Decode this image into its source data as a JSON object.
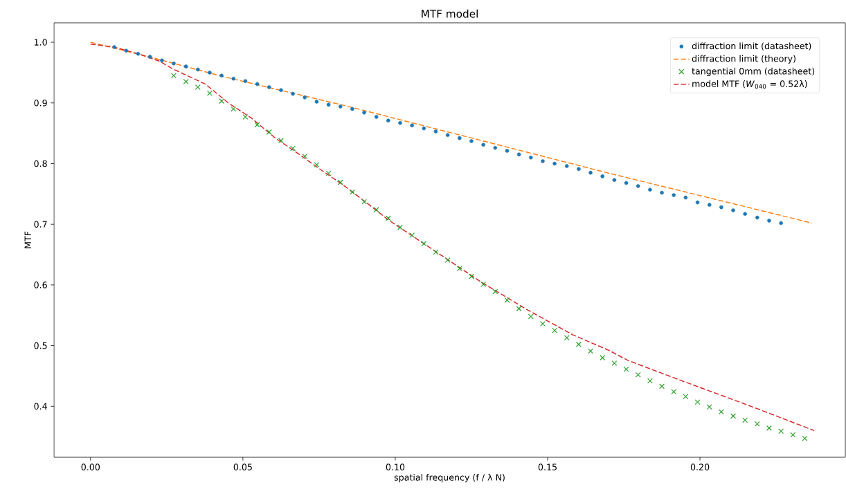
{
  "chart_data": {
    "type": "line",
    "title": "MTF model",
    "xlabel": "spatial frequency (f / λ N)",
    "ylabel": "MTF",
    "xlim": [
      -0.012,
      0.2477
    ],
    "ylim": [
      0.316,
      1.032
    ],
    "xticks": [
      {
        "value": 0,
        "label": "0.00"
      },
      {
        "value": 0.05,
        "label": "0.05"
      },
      {
        "value": 0.1,
        "label": "0.10"
      },
      {
        "value": 0.15,
        "label": "0.15"
      },
      {
        "value": 0.2,
        "label": "0.20"
      }
    ],
    "yticks": [
      {
        "value": 0.4,
        "label": "0.4"
      },
      {
        "value": 0.5,
        "label": "0.5"
      },
      {
        "value": 0.6,
        "label": "0.6"
      },
      {
        "value": 0.7,
        "label": "0.7"
      },
      {
        "value": 0.8,
        "label": "0.8"
      },
      {
        "value": 0.9,
        "label": "0.9"
      },
      {
        "value": 1.0,
        "label": "1.0"
      }
    ],
    "legend": "top right",
    "series": [
      {
        "name": "diffraction limit (datasheet)",
        "type": "scatter",
        "marker": "circle",
        "color": "#1f77b4",
        "x": [
          0.0078,
          0.0117,
          0.0156,
          0.0195,
          0.0234,
          0.0273,
          0.0313,
          0.0352,
          0.0391,
          0.043,
          0.0469,
          0.0508,
          0.0547,
          0.0586,
          0.0625,
          0.0664,
          0.0703,
          0.0742,
          0.0781,
          0.082,
          0.0859,
          0.0898,
          0.0938,
          0.0977,
          0.1016,
          0.1055,
          0.1094,
          0.1133,
          0.1172,
          0.1211,
          0.125,
          0.1289,
          0.1328,
          0.1367,
          0.1406,
          0.1445,
          0.1484,
          0.1523,
          0.1563,
          0.1602,
          0.1641,
          0.168,
          0.1719,
          0.1758,
          0.1797,
          0.1836,
          0.1875,
          0.1914,
          0.1953,
          0.1992,
          0.2031,
          0.207,
          0.2109,
          0.2148,
          0.2188,
          0.2227,
          0.2266
        ],
        "values": [
          0.992,
          0.986,
          0.981,
          0.976,
          0.97,
          0.965,
          0.96,
          0.955,
          0.95,
          0.945,
          0.94,
          0.936,
          0.931,
          0.926,
          0.921,
          0.915,
          0.909,
          0.902,
          0.897,
          0.894,
          0.89,
          0.884,
          0.877,
          0.871,
          0.867,
          0.863,
          0.858,
          0.853,
          0.847,
          0.842,
          0.837,
          0.831,
          0.826,
          0.821,
          0.815,
          0.81,
          0.804,
          0.8,
          0.796,
          0.791,
          0.785,
          0.779,
          0.773,
          0.768,
          0.763,
          0.757,
          0.752,
          0.748,
          0.744,
          0.736,
          0.732,
          0.728,
          0.723,
          0.717,
          0.711,
          0.706,
          0.702
        ]
      },
      {
        "name": "diffraction limit (theory)",
        "line_style": "dashed",
        "color": "#ff7f0e",
        "x": [
          0,
          0.02,
          0.043,
          0.0839,
          0.1252,
          0.1702,
          0.2035,
          0.2367
        ],
        "values": [
          1.0,
          0.975,
          0.944,
          0.895,
          0.842,
          0.784,
          0.743,
          0.702
        ]
      },
      {
        "name": "tangential 0mm (datasheet)",
        "type": "scatter",
        "marker": "cross",
        "color": "#2ca02c",
        "x": [
          0.0273,
          0.0313,
          0.0352,
          0.0391,
          0.043,
          0.0469,
          0.0508,
          0.0547,
          0.0586,
          0.0625,
          0.0664,
          0.0703,
          0.0742,
          0.0781,
          0.082,
          0.0859,
          0.0898,
          0.0938,
          0.0977,
          0.1016,
          0.1055,
          0.1094,
          0.1133,
          0.1172,
          0.1211,
          0.125,
          0.1289,
          0.1328,
          0.1367,
          0.1406,
          0.1445,
          0.1484,
          0.1523,
          0.1563,
          0.1602,
          0.1641,
          0.168,
          0.1719,
          0.1758,
          0.1797,
          0.1836,
          0.1875,
          0.1914,
          0.1953,
          0.1992,
          0.2031,
          0.207,
          0.2109,
          0.2148,
          0.2188,
          0.2227,
          0.2266,
          0.2305,
          0.2344
        ],
        "values": [
          0.945,
          0.935,
          0.926,
          0.916,
          0.903,
          0.89,
          0.877,
          0.864,
          0.852,
          0.838,
          0.825,
          0.812,
          0.798,
          0.784,
          0.769,
          0.753,
          0.737,
          0.724,
          0.71,
          0.695,
          0.682,
          0.668,
          0.654,
          0.641,
          0.627,
          0.614,
          0.601,
          0.589,
          0.575,
          0.561,
          0.548,
          0.536,
          0.525,
          0.513,
          0.502,
          0.491,
          0.48,
          0.471,
          0.461,
          0.452,
          0.442,
          0.433,
          0.424,
          0.416,
          0.407,
          0.399,
          0.391,
          0.384,
          0.377,
          0.371,
          0.364,
          0.359,
          0.353,
          0.347
        ]
      },
      {
        "name": "model MTF (*W*$_{040}$ = 0.52λ)",
        "line_style": "dashed",
        "color": "#d62728",
        "x": [
          0,
          0.0078,
          0.0156,
          0.0225,
          0.027,
          0.0377,
          0.0452,
          0.0528,
          0.0604,
          0.068,
          0.0755,
          0.0831,
          0.0907,
          0.0975,
          0.1127,
          0.1278,
          0.143,
          0.1582,
          0.1702,
          0.1762,
          0.193,
          0.2157,
          0.2375
        ],
        "values": [
          0.997,
          0.992,
          0.981,
          0.969,
          0.956,
          0.931,
          0.9,
          0.875,
          0.843,
          0.817,
          0.79,
          0.764,
          0.735,
          0.708,
          0.657,
          0.606,
          0.56,
          0.518,
          0.492,
          0.476,
          0.444,
          0.402,
          0.36
        ]
      }
    ]
  }
}
